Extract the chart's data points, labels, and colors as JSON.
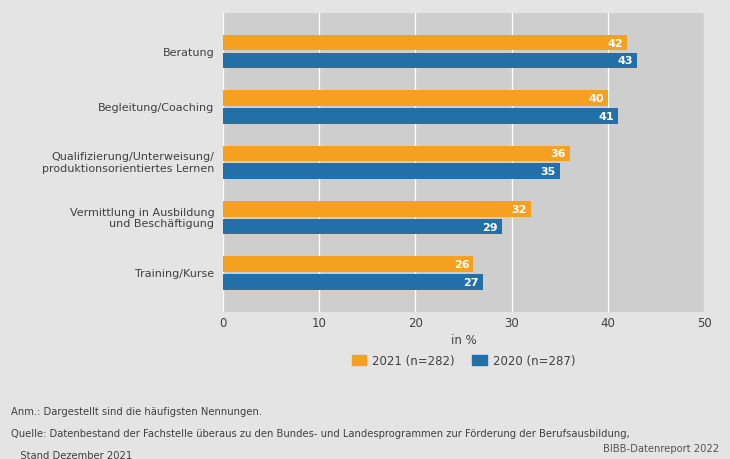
{
  "categories": [
    "Beratung",
    "Begleitung/Coaching",
    "Qualifizierung/Unterweisung/\nproduktionsorientiertes Lernen",
    "Vermittlung in Ausbildung\nund Beschäftigung",
    "Training/Kurse"
  ],
  "values_2021": [
    42,
    40,
    36,
    32,
    26
  ],
  "values_2020": [
    43,
    41,
    35,
    29,
    27
  ],
  "color_2021": "#F5A01E",
  "color_2020": "#2370A8",
  "xlim": [
    0,
    50
  ],
  "xticks": [
    0,
    10,
    20,
    30,
    40,
    50
  ],
  "xlabel": "in %",
  "legend_2021": "2021 (n=282)",
  "legend_2020": "2020 (n=287)",
  "annotation_line1": "Anm.: Dargestellt sind die häufigsten Nennungen.",
  "annotation_line2": "Quelle: Datenbestand der Fachstelle überaus zu den Bundes- und Landesprogrammen zur Förderung der Berufsausbildung,",
  "annotation_line3": "   Stand Dezember 2021",
  "bibb_label": "BIBB-Datenreport 2022",
  "bg_color": "#E4E4E4",
  "plot_bg_color": "#CECECE",
  "bar_height": 0.28,
  "bar_gap": 0.04,
  "label_fontsize": 8,
  "value_fontsize": 8,
  "tick_fontsize": 8.5,
  "xlabel_fontsize": 8.5,
  "legend_fontsize": 8.5,
  "annotation_fontsize": 7.2
}
